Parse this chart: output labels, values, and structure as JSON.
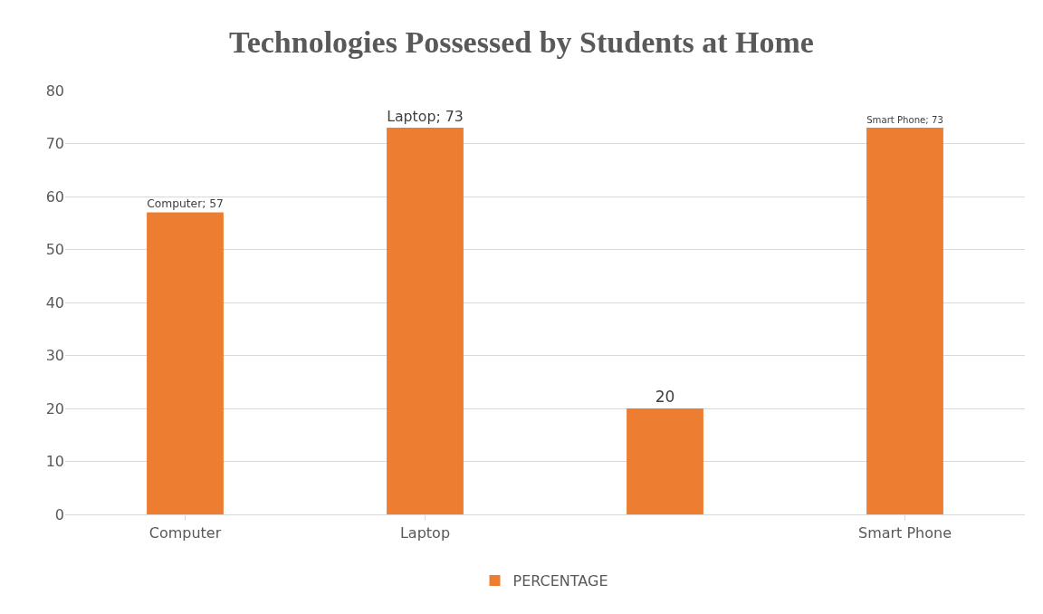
{
  "chart_data": {
    "type": "bar",
    "title": "Technologies Possessed by Students at Home",
    "categories": [
      "Computer",
      "Laptop",
      null,
      "Smart Phone"
    ],
    "series": [
      {
        "name": "PERCENTAGE",
        "color": "#ed7d31",
        "values": [
          57,
          73,
          20,
          73
        ],
        "value_labels": [
          "Computer; 57",
          "Laptop; 73",
          "20",
          "Smart Phone; 73"
        ]
      }
    ],
    "ylim": [
      0,
      80
    ],
    "yticks": [
      0,
      10,
      20,
      30,
      40,
      50,
      60,
      70,
      80
    ],
    "grid": "y",
    "legend": "bottom"
  }
}
